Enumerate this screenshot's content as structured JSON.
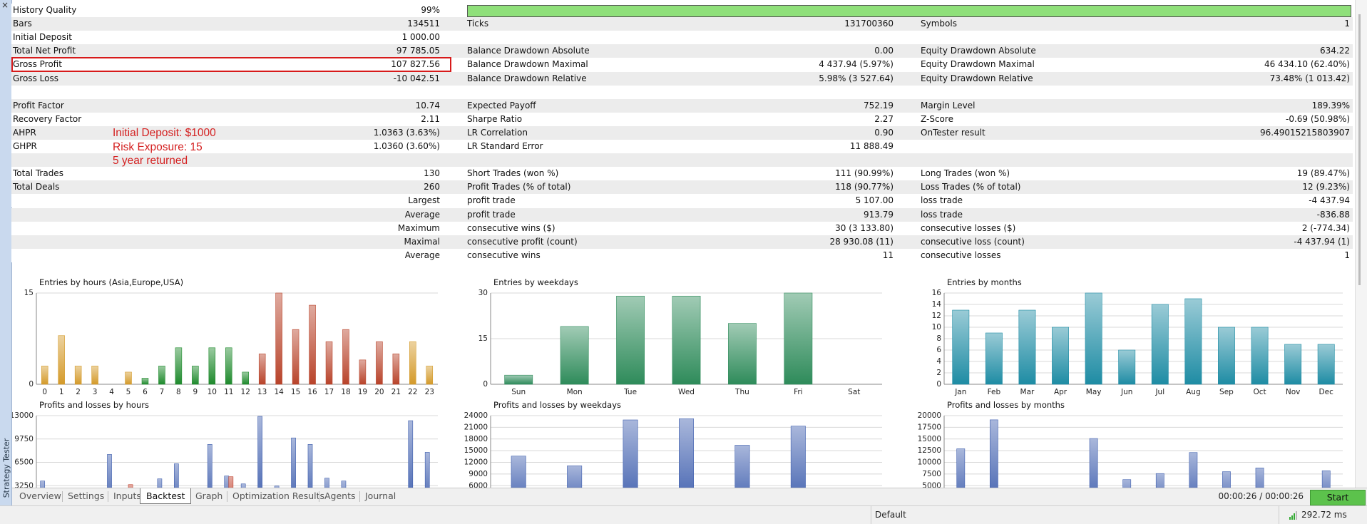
{
  "sidebar_title": "Strategy Tester",
  "report": {
    "rows": [
      [
        "History Quality",
        "99%",
        null,
        null,
        null,
        null
      ],
      [
        "Bars",
        "134511",
        "Ticks",
        "131700360",
        "Symbols",
        "1"
      ],
      [
        "Initial Deposit",
        "1 000.00",
        null,
        null,
        null,
        null
      ],
      [
        "Total Net Profit",
        "97 785.05",
        "Balance Drawdown Absolute",
        "0.00",
        "Equity Drawdown Absolute",
        "634.22"
      ],
      [
        "Gross Profit",
        "107 827.56",
        "Balance Drawdown Maximal",
        "4 437.94 (5.97%)",
        "Equity Drawdown Maximal",
        "46 434.10 (62.40%)"
      ],
      [
        "Gross Loss",
        "-10 042.51",
        "Balance Drawdown Relative",
        "5.98% (3 527.64)",
        "Equity Drawdown Relative",
        "73.48% (1 013.42)"
      ],
      [
        null,
        null,
        null,
        null,
        null,
        null
      ],
      [
        "Profit Factor",
        "10.74",
        "Expected Payoff",
        "752.19",
        "Margin Level",
        "189.39%"
      ],
      [
        "Recovery Factor",
        "2.11",
        "Sharpe Ratio",
        "2.27",
        "Z-Score",
        "-0.69 (50.98%)"
      ],
      [
        "AHPR",
        "1.0363 (3.63%)",
        "LR Correlation",
        "0.90",
        "OnTester result",
        "96.49015215803907"
      ],
      [
        "GHPR",
        "1.0360 (3.60%)",
        "LR Standard Error",
        "11 888.49",
        null,
        null
      ],
      [
        null,
        null,
        null,
        null,
        null,
        null
      ],
      [
        "Total Trades",
        "130",
        "Short Trades (won %)",
        "111 (90.99%)",
        "Long Trades (won %)",
        "19 (89.47%)"
      ],
      [
        "Total Deals",
        "260",
        "Profit Trades (% of total)",
        "118 (90.77%)",
        "Loss Trades (% of total)",
        "12 (9.23%)"
      ],
      [
        null,
        "Largest",
        "profit trade",
        "5 107.00",
        "loss trade",
        "-4 437.94"
      ],
      [
        null,
        "Average",
        "profit trade",
        "913.79",
        "loss trade",
        "-836.88"
      ],
      [
        null,
        "Maximum",
        "consecutive wins ($)",
        "30 (3 133.80)",
        "consecutive losses ($)",
        "2 (-774.34)"
      ],
      [
        null,
        "Maximal",
        "consecutive profit (count)",
        "28 930.08 (11)",
        "consecutive loss (count)",
        "-4 437.94 (1)"
      ],
      [
        null,
        "Average",
        "consecutive wins",
        "11",
        "consecutive losses",
        "1"
      ]
    ],
    "highlighted_row": 4,
    "quality_bar_color": "#8fe07a"
  },
  "annotation": [
    "Initial Deposit: $1000",
    "Risk Exposure: 15",
    "5 year returned"
  ],
  "charts": [
    {
      "type": "bar",
      "title": "Entries by hours (Asia,Europe,USA)",
      "categories": [
        "0",
        "1",
        "2",
        "3",
        "4",
        "5",
        "6",
        "7",
        "8",
        "9",
        "10",
        "11",
        "12",
        "13",
        "14",
        "15",
        "16",
        "17",
        "18",
        "19",
        "20",
        "21",
        "22",
        "23"
      ],
      "values": [
        3,
        8,
        3,
        3,
        0,
        2,
        1,
        3,
        6,
        3,
        6,
        6,
        2,
        5,
        15,
        9,
        13,
        7,
        9,
        4,
        7,
        5,
        7,
        3
      ],
      "colors": [
        "#d49a2a",
        "#d49a2a",
        "#d49a2a",
        "#d49a2a",
        "#d49a2a",
        "#d49a2a",
        "#1e8a2c",
        "#1e8a2c",
        "#1e8a2c",
        "#1e8a2c",
        "#1e8a2c",
        "#1e8a2c",
        "#1e8a2c",
        "#b8432a",
        "#b8432a",
        "#b8432a",
        "#b8432a",
        "#b8432a",
        "#b8432a",
        "#b8432a",
        "#b8432a",
        "#b8432a",
        "#d49a2a",
        "#d49a2a"
      ],
      "ylim": [
        0,
        15
      ],
      "yticks": [
        0,
        15
      ],
      "grid": true
    },
    {
      "type": "bar",
      "title": "Entries by weekdays",
      "categories": [
        "Sun",
        "Mon",
        "Tue",
        "Wed",
        "Thu",
        "Fri",
        "Sat"
      ],
      "values": [
        3,
        19,
        29,
        29,
        20,
        30,
        0
      ],
      "color": "#2e8b5a",
      "ylim": [
        0,
        30
      ],
      "yticks": [
        0,
        15,
        30
      ],
      "grid": true
    },
    {
      "type": "bar",
      "title": "Entries by months",
      "categories": [
        "Jan",
        "Feb",
        "Mar",
        "Apr",
        "May",
        "Jun",
        "Jul",
        "Aug",
        "Sep",
        "Oct",
        "Nov",
        "Dec"
      ],
      "values": [
        13,
        9,
        13,
        10,
        16,
        6,
        14,
        15,
        10,
        10,
        7,
        7
      ],
      "color": "#1e8ca4",
      "ylim": [
        0,
        16
      ],
      "yticks": [
        0,
        2,
        4,
        6,
        8,
        10,
        12,
        14,
        16
      ],
      "grid": true
    },
    {
      "type": "grouped_bar",
      "title": "Profits and losses by hours",
      "series": [
        {
          "color": "#3f5fae",
          "values": [
            3900,
            0,
            0,
            0,
            7600,
            0,
            0,
            4200,
            6300,
            0,
            9000,
            4600,
            3500,
            12900,
            3200,
            9900,
            9000,
            4300,
            3900,
            0,
            0,
            0,
            12300,
            7900
          ]
        },
        {
          "color": "#c0402c",
          "values": [
            0,
            0,
            0,
            0,
            0,
            3400,
            0,
            0,
            0,
            0,
            0,
            4500,
            0,
            0,
            0,
            0,
            0,
            0,
            0,
            0,
            0,
            0,
            0,
            0
          ]
        }
      ],
      "ylim": [
        0,
        13000
      ],
      "yticks": [
        3250,
        6500,
        9750,
        13000
      ],
      "grid": true
    },
    {
      "type": "grouped_bar",
      "title": "Profits and losses by weekdays",
      "series": [
        {
          "color": "#3f5fae",
          "values": [
            13600,
            11100,
            22900,
            23200,
            16400,
            21300,
            0
          ]
        }
      ],
      "ylim": [
        0,
        24000
      ],
      "yticks": [
        6000,
        9000,
        12000,
        15000,
        18000,
        21000,
        24000
      ],
      "grid": true
    },
    {
      "type": "grouped_bar",
      "title": "Profits and losses by months",
      "series": [
        {
          "color": "#3f5fae",
          "values": [
            12900,
            19100,
            0,
            0,
            15100,
            6300,
            7600,
            12100,
            8000,
            8800,
            0,
            8200
          ]
        }
      ],
      "ylim": [
        0,
        20000
      ],
      "yticks": [
        5000,
        7500,
        10000,
        12500,
        15000,
        17500,
        20000
      ],
      "grid": true
    }
  ],
  "tabs": [
    "Overview",
    "Settings",
    "Inputs",
    "Backtest",
    "Graph",
    "Optimization Results",
    "Agents",
    "Journal"
  ],
  "selected_tab": 3,
  "elapsed": "00:00:26 / 00:00:26",
  "start_button": "Start",
  "status": {
    "profile": "Default",
    "ping": "292.72 ms"
  }
}
